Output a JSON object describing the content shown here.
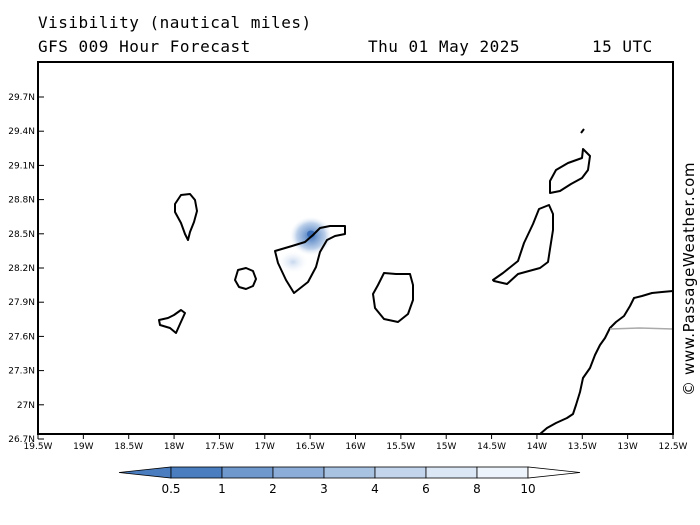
{
  "header": {
    "title": "Visibility (nautical miles)",
    "model": "GFS 009 Hour Forecast",
    "date": "Thu 01 May 2025",
    "time": "15 UTC"
  },
  "credit": "© www.PassageWeather.com",
  "map": {
    "lon_range": [
      -19.5,
      -12.5
    ],
    "lat_range": [
      26.5,
      30.0
    ],
    "y_tick_labels": [
      "29.7N",
      "29.4N",
      "29.1N",
      "28.8N",
      "28.5N",
      "28.2N",
      "27.9N",
      "27.6N",
      "27.3N",
      "27N",
      "26.7N"
    ],
    "x_tick_labels": [
      "19.5W",
      "19W",
      "18.5W",
      "18W",
      "17.5W",
      "17W",
      "16.5W",
      "16W",
      "15.5W",
      "15W",
      "14.5W",
      "14W",
      "13.5W",
      "13W",
      "12.5W"
    ],
    "visibility_patch": {
      "lon": -16.5,
      "lat": 28.5,
      "value": 0.5
    },
    "coast_color": "#000000",
    "border_color": "#aaaaaa"
  },
  "colorbar": {
    "labels": [
      "0.5",
      "1",
      "2",
      "3",
      "4",
      "6",
      "8",
      "10"
    ],
    "colors": [
      "#4a7dbf",
      "#6f98cc",
      "#8cadd8",
      "#a8c2e2",
      "#c3d5ec",
      "#dce7f5",
      "#eef4fb",
      "#ffffff"
    ]
  }
}
